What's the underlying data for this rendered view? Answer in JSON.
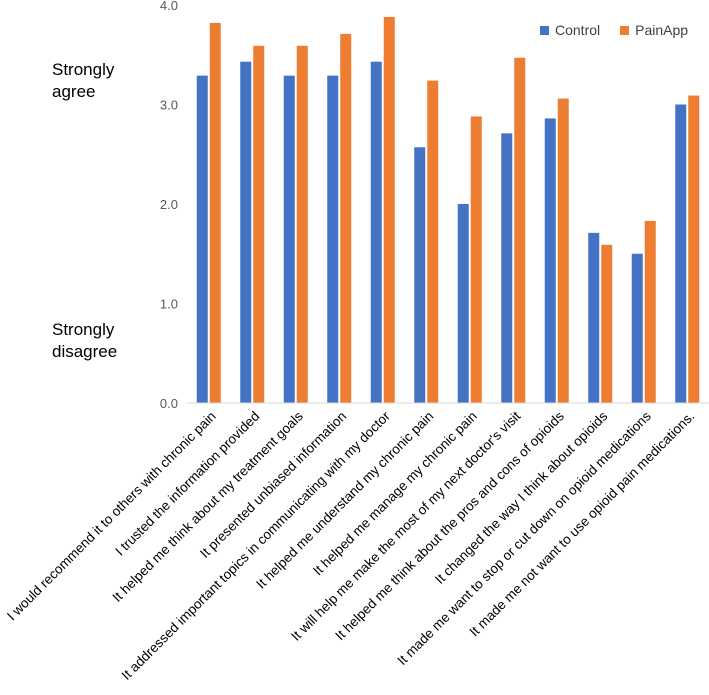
{
  "chart_data": {
    "type": "bar",
    "title": "",
    "xlabel": "",
    "ylabel": "",
    "ylim": [
      0,
      4
    ],
    "yticks": [
      "0.0",
      "1.0",
      "2.0",
      "3.0",
      "4.0"
    ],
    "grid": false,
    "legend": "top-right",
    "annotations": {
      "top": "Strongly\nagree",
      "bottom": "Strongly\ndisagree"
    },
    "categories": [
      "I would recommend it to others with chronic pain",
      "I trusted the information provided",
      "It helped me think about my treatment goals",
      "It presented unbiased information",
      "It addressed important topics in communicating with my doctor",
      "It helped me understand my chronic pain",
      "It helped me manage my chronic pain",
      "It will help me make the most of my next doctor's visit",
      "It helped me think about the pros and cons of opioids",
      "It changed the way I think about opioids",
      "It made me want to stop or cut down on opioid  medications",
      "It made me not want to use opioid pain medications."
    ],
    "series": [
      {
        "name": "Control",
        "color": "#4472C4",
        "values": [
          3.29,
          3.43,
          3.29,
          3.29,
          3.43,
          2.57,
          2.0,
          2.71,
          2.86,
          1.71,
          1.5,
          3.0
        ]
      },
      {
        "name": "PainApp",
        "color": "#ED7D31",
        "values": [
          3.82,
          3.59,
          3.59,
          3.71,
          3.88,
          3.24,
          2.88,
          3.47,
          3.06,
          1.59,
          1.83,
          3.09
        ]
      }
    ]
  }
}
